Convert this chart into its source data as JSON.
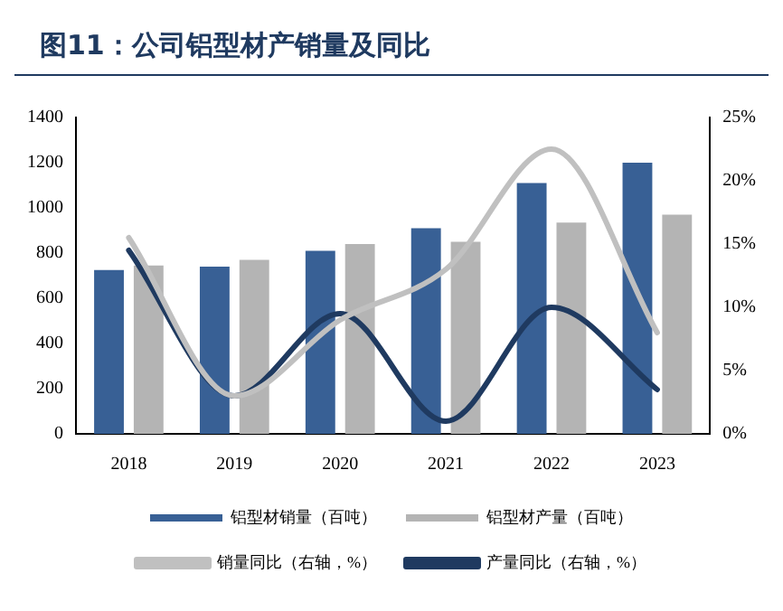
{
  "chart_data": {
    "type": "bar",
    "title": "图11：公司铝型材产销量及同比",
    "categories": [
      "2018",
      "2019",
      "2020",
      "2021",
      "2022",
      "2023"
    ],
    "series": [
      {
        "name": "铝型材销量（百吨）",
        "color": "#386095",
        "values": [
          725,
          740,
          810,
          910,
          1110,
          1200
        ]
      },
      {
        "name": "铝型材产量（百吨）",
        "color": "#b4b4b4",
        "values": [
          745,
          770,
          840,
          850,
          935,
          970
        ]
      },
      {
        "name": "销量同比（右轴，%）",
        "type": "line",
        "axis": "y2",
        "color": "#c0c0c0",
        "values": [
          15.5,
          3,
          9,
          13,
          22.5,
          8
        ]
      },
      {
        "name": "产量同比（右轴，%）",
        "type": "line",
        "axis": "y2",
        "color": "#1f3a60",
        "values": [
          14.5,
          3,
          9.5,
          1,
          10,
          3.5
        ]
      }
    ],
    "ylim": [
      0,
      1400
    ],
    "yticks": [
      0,
      200,
      400,
      600,
      800,
      1000,
      1200,
      1400
    ],
    "y2lim": [
      0,
      25
    ],
    "y2ticks": [
      {
        "value": 0,
        "label": "0%"
      },
      {
        "value": 5,
        "label": "5%"
      },
      {
        "value": 10,
        "label": "10%"
      },
      {
        "value": 15,
        "label": "15%"
      },
      {
        "value": 20,
        "label": "20%"
      },
      {
        "value": 25,
        "label": "25%"
      }
    ],
    "grid": false,
    "legend": "bottom",
    "marker": "none"
  }
}
